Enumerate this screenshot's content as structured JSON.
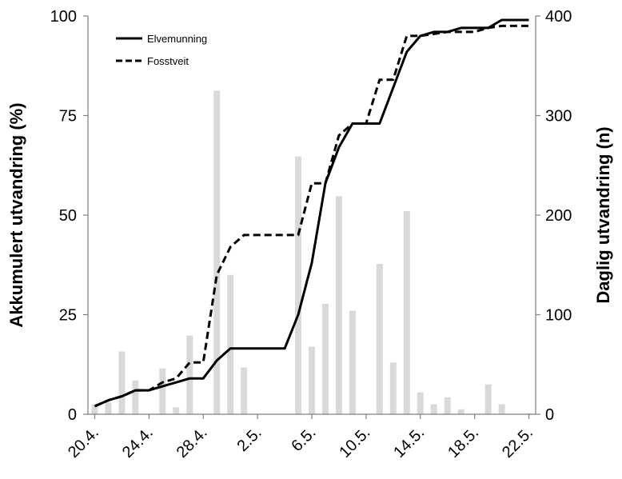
{
  "chart_data": {
    "type": "bar+line",
    "x_tick_labels": [
      "20.4.",
      "24.4.",
      "28.4.",
      "2.5.",
      "6.5.",
      "10.5.",
      "14.5.",
      "18.5.",
      "22.5."
    ],
    "ylabel_left": "Akkumulert utvandring (%)",
    "ylabel_right": "Daglig utvandring (n)",
    "ylim_left": [
      0,
      100
    ],
    "ylim_right": [
      0,
      400
    ],
    "yticks_left": [
      "0",
      "25",
      "50",
      "75",
      "100"
    ],
    "yticks_right": [
      "0",
      "100",
      "200",
      "300",
      "400"
    ],
    "legend_position": "top-left",
    "bar_color": "#d9d9d9",
    "bars": {
      "x": [
        20,
        21,
        22,
        23,
        25,
        26,
        27,
        29,
        30,
        31,
        35,
        36,
        37,
        38,
        39,
        41,
        42,
        43,
        44,
        45,
        46,
        47,
        49,
        50,
        52
      ],
      "values": [
        10,
        12,
        63,
        34,
        46,
        7,
        79,
        325,
        140,
        47,
        259,
        68,
        111,
        219,
        104,
        151,
        52,
        204,
        22,
        10,
        17,
        5,
        30,
        10,
        1
      ]
    },
    "series": [
      {
        "name": "Elvemunning",
        "style": "solid",
        "color": "#000000",
        "x": [
          20,
          21,
          22,
          23,
          24,
          25,
          26,
          27,
          28,
          29,
          30,
          31,
          32,
          33,
          34,
          35,
          36,
          37,
          38,
          39,
          40,
          41,
          42,
          43,
          44,
          45,
          46,
          47,
          48,
          49,
          50,
          51,
          52
        ],
        "y": [
          2,
          3.5,
          4.5,
          6,
          6,
          7,
          8,
          9,
          9,
          13.5,
          16.5,
          16.5,
          16.5,
          16.5,
          16.5,
          25,
          38,
          58,
          67,
          73,
          73,
          73,
          82,
          91,
          95,
          96,
          96,
          97,
          97,
          97,
          99,
          99,
          99
        ]
      },
      {
        "name": "Fosstveit",
        "style": "dashed",
        "color": "#000000",
        "x": [
          20,
          21,
          22,
          23,
          24,
          25,
          26,
          27,
          28,
          29,
          30,
          31,
          32,
          33,
          34,
          35,
          36,
          37,
          38,
          39,
          40,
          41,
          42,
          43,
          44,
          45,
          46,
          47,
          48,
          49,
          50,
          51,
          52
        ],
        "y": [
          2,
          3.5,
          4.5,
          6,
          6,
          8,
          9,
          13,
          13,
          35,
          42,
          45,
          45,
          45,
          45,
          45,
          58,
          58,
          70,
          73,
          73,
          84,
          84,
          95,
          95,
          95.5,
          96,
          96,
          96,
          97,
          97.5,
          97.5,
          97.5
        ]
      }
    ]
  }
}
